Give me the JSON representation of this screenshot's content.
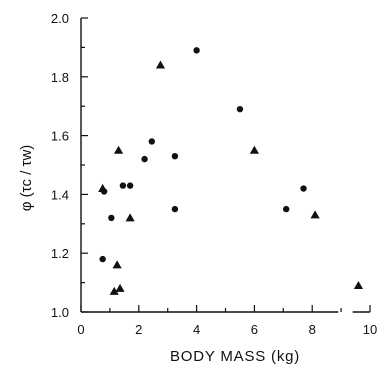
{
  "chart_data": {
    "type": "scatter",
    "title": "",
    "xlabel": "BODY MASS (kg)",
    "ylabel": "φ (τc / τw)",
    "xlim": [
      0,
      10
    ],
    "ylim": [
      1.0,
      2.0
    ],
    "x_ticks": [
      "0",
      "2",
      "4",
      "6",
      "8",
      "10"
    ],
    "y_ticks": [
      "1.0",
      "1.2",
      "1.4",
      "1.6",
      "1.8",
      "2.0"
    ],
    "grid": false,
    "legend": "none",
    "series": [
      {
        "marker": "circle",
        "points": [
          {
            "x": 0.75,
            "y": 1.18
          },
          {
            "x": 0.8,
            "y": 1.41
          },
          {
            "x": 1.05,
            "y": 1.32
          },
          {
            "x": 1.45,
            "y": 1.43
          },
          {
            "x": 1.7,
            "y": 1.43
          },
          {
            "x": 2.2,
            "y": 1.52
          },
          {
            "x": 2.45,
            "y": 1.58
          },
          {
            "x": 3.25,
            "y": 1.53
          },
          {
            "x": 3.25,
            "y": 1.35
          },
          {
            "x": 4.0,
            "y": 1.89
          },
          {
            "x": 5.5,
            "y": 1.69
          },
          {
            "x": 7.1,
            "y": 1.35
          },
          {
            "x": 7.7,
            "y": 1.42
          }
        ]
      },
      {
        "marker": "triangle",
        "points": [
          {
            "x": 0.75,
            "y": 1.42
          },
          {
            "x": 1.15,
            "y": 1.07
          },
          {
            "x": 1.25,
            "y": 1.16
          },
          {
            "x": 1.3,
            "y": 1.55
          },
          {
            "x": 1.35,
            "y": 1.08
          },
          {
            "x": 1.7,
            "y": 1.32
          },
          {
            "x": 2.75,
            "y": 1.84
          },
          {
            "x": 6.0,
            "y": 1.55
          },
          {
            "x": 8.1,
            "y": 1.33
          },
          {
            "x": 9.6,
            "y": 1.09
          }
        ]
      }
    ]
  }
}
